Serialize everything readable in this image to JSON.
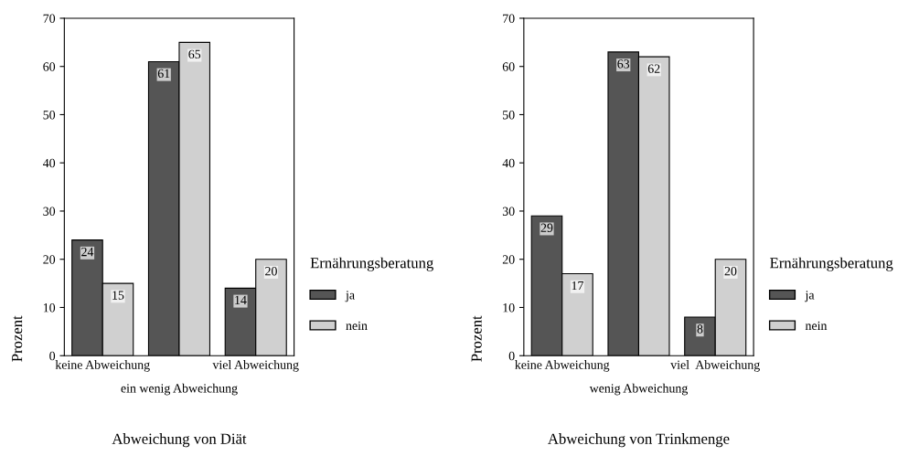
{
  "chart_data": [
    {
      "type": "bar",
      "xlabel": "Abweichung von Diät",
      "ylabel": "Prozent",
      "legend_title": "Ernährungsberatung",
      "legend": "right",
      "categories": [
        "keine Abweichung",
        "ein wenig Abweichung",
        "viel Abweichung"
      ],
      "series": [
        {
          "name": "ja",
          "color": "#555555",
          "values": [
            24,
            61,
            14
          ]
        },
        {
          "name": "nein",
          "color": "#d0d0d0",
          "values": [
            15,
            65,
            20
          ]
        }
      ],
      "ylim": [
        0,
        70
      ],
      "yticks": [
        0,
        10,
        20,
        30,
        40,
        50,
        60,
        70
      ],
      "grid": false,
      "data_labels": true
    },
    {
      "type": "bar",
      "xlabel": "Abweichung von Trinkmenge",
      "ylabel": "Prozent",
      "legend_title": "Ernährungsberatung",
      "legend": "right",
      "categories": [
        "keine Abweichung",
        "wenig Abweichung",
        "viel  Abweichung"
      ],
      "series": [
        {
          "name": "ja",
          "color": "#555555",
          "values": [
            29,
            63,
            8
          ]
        },
        {
          "name": "nein",
          "color": "#d0d0d0",
          "values": [
            17,
            62,
            20
          ]
        }
      ],
      "ylim": [
        0,
        70
      ],
      "yticks": [
        0,
        10,
        20,
        30,
        40,
        50,
        60,
        70
      ],
      "grid": false,
      "data_labels": true
    }
  ]
}
